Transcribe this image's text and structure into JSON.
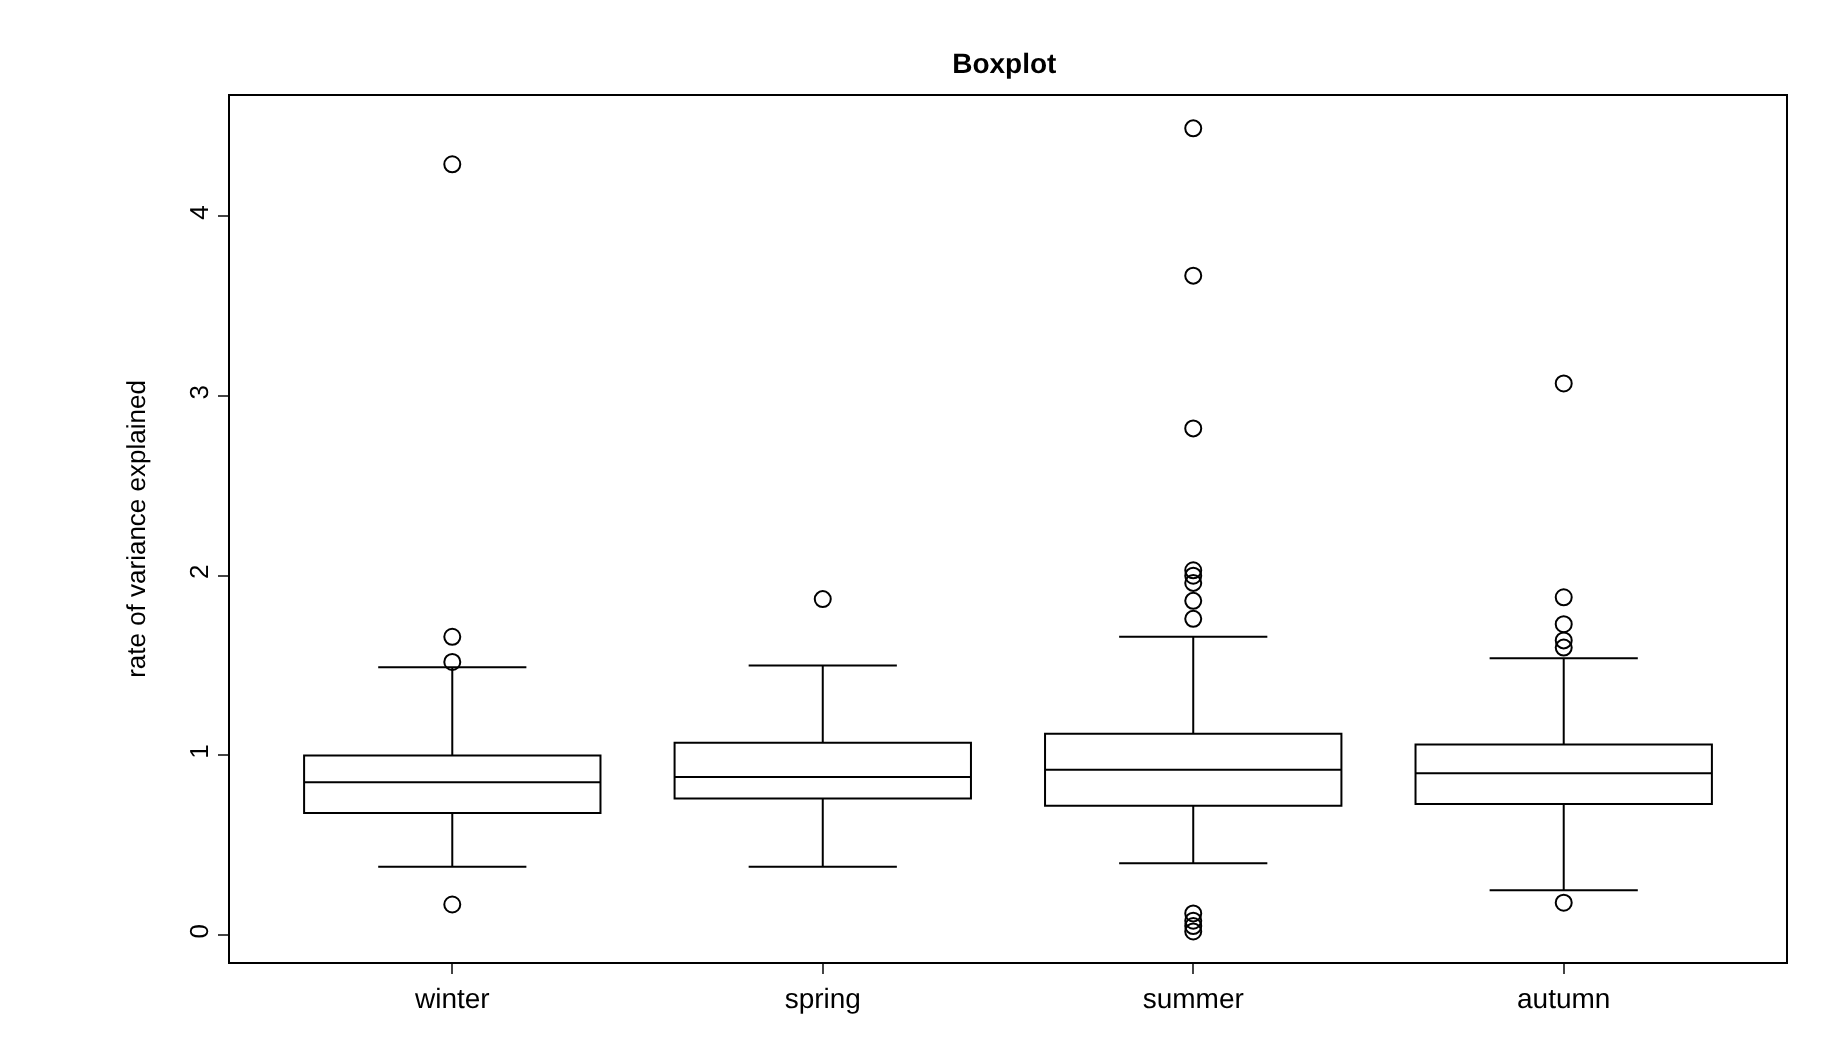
{
  "chart_data": {
    "type": "box",
    "title": "Boxplot",
    "ylabel": "rate of variance explained",
    "categories": [
      "winter",
      "spring",
      "summer",
      "autumn"
    ],
    "boxes": [
      {
        "low": 0.38,
        "q1": 0.68,
        "median": 0.85,
        "q3": 1.0,
        "high": 1.49,
        "outliers": [
          4.29,
          1.66,
          1.52,
          0.17
        ]
      },
      {
        "low": 0.38,
        "q1": 0.76,
        "median": 0.88,
        "q3": 1.07,
        "high": 1.5,
        "outliers": [
          1.87
        ]
      },
      {
        "low": 0.4,
        "q1": 0.72,
        "median": 0.92,
        "q3": 1.12,
        "high": 1.66,
        "outliers": [
          4.49,
          3.67,
          2.82,
          2.03,
          2.0,
          1.96,
          1.86,
          1.76,
          0.12,
          0.08,
          0.05,
          0.02
        ]
      },
      {
        "low": 0.25,
        "q1": 0.73,
        "median": 0.9,
        "q3": 1.06,
        "high": 1.54,
        "outliers": [
          3.07,
          1.88,
          1.73,
          1.64,
          1.6,
          0.18
        ]
      }
    ],
    "color": "#000000",
    "ylim": [
      -0.15,
      4.67
    ],
    "yticks": [
      0,
      1,
      2,
      3,
      4
    ]
  }
}
